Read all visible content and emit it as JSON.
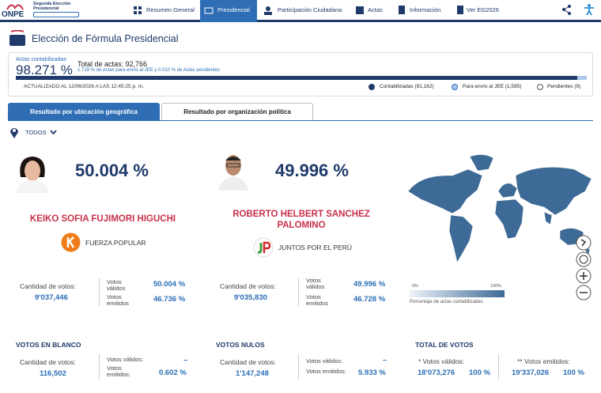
{
  "header": {
    "logo": "ONPE",
    "election": "Segunda Elección Presidencial",
    "nav": [
      "Resumen General",
      "Presidencial",
      "Participación Ciudadana",
      "Actas",
      "Información",
      "Ver EG2026"
    ]
  },
  "title": "Elección de Fórmula Presidencial",
  "progress": {
    "caption": "Actas contabilizadas",
    "percent": {
      "value": 98.271,
      "label": "98.271 %"
    },
    "total": "Total de actas: 92,766",
    "detail": "1.719 % de Actas para envío al JEE y 0.010 % de Actas pendientes",
    "updated": "ACTUALIZADO AL 12/06/2026 A LAS 12:45:25 p. m.",
    "legend": [
      "Contabilizadas (91,162)",
      "Para envío al JEE (1,595)",
      "Pendientes (9)"
    ]
  },
  "tabs": [
    "Resultado por ubicación geográfica",
    "Resultado por organización política"
  ],
  "filter": "TODOS",
  "candidates": [
    {
      "percent": "50.004 %",
      "name": "KEIKO SOFIA FUJIMORI HIGUCHI",
      "party": "FUERZA POPULAR",
      "votes_label": "Cantidad de votos:",
      "votes": "9'037,446",
      "valid_label": "Votos válidos",
      "valid": "50.004 %",
      "cast_label": "Votos emitidos",
      "cast": "46.736 %"
    },
    {
      "percent": "49.996 %",
      "name": "ROBERTO HELBERT SANCHEZ PALOMINO",
      "party": "JUNTOS POR EL PERÚ",
      "votes_label": "Cantidad de votos:",
      "votes": "9'035,830",
      "valid_label": "Votos válidos",
      "valid": "49.996 %",
      "cast_label": "Votos emitidos",
      "cast": "46.728 %"
    }
  ],
  "map_legend": {
    "min": "0%",
    "max": "100%",
    "caption": "Porcentaje de actas contabilizadas"
  },
  "summary": [
    {
      "title": "VOTOS EN BLANCO",
      "votes_label": "Cantidad de votos:",
      "votes": "116,502",
      "valid_label": "Votos válidos:",
      "valid": "–",
      "cast_label": "Votos emitidos:",
      "cast": "0.602 %"
    },
    {
      "title": "VOTOS NULOS",
      "votes_label": "Cantidad de votos:",
      "votes": "1'147,248",
      "valid_label": "Votos válidos:",
      "valid": "–",
      "cast_label": "Votos emitidos:",
      "cast": "5.933 %"
    }
  ],
  "total": {
    "title": "TOTAL DE VOTOS",
    "valid_label": "* Votos válidos:",
    "valid_votes": "18'073,276",
    "valid_pct": "100 %",
    "cast_label": "** Votos emitidos:",
    "cast_votes": "19'337,026",
    "cast_pct": "100 %"
  }
}
